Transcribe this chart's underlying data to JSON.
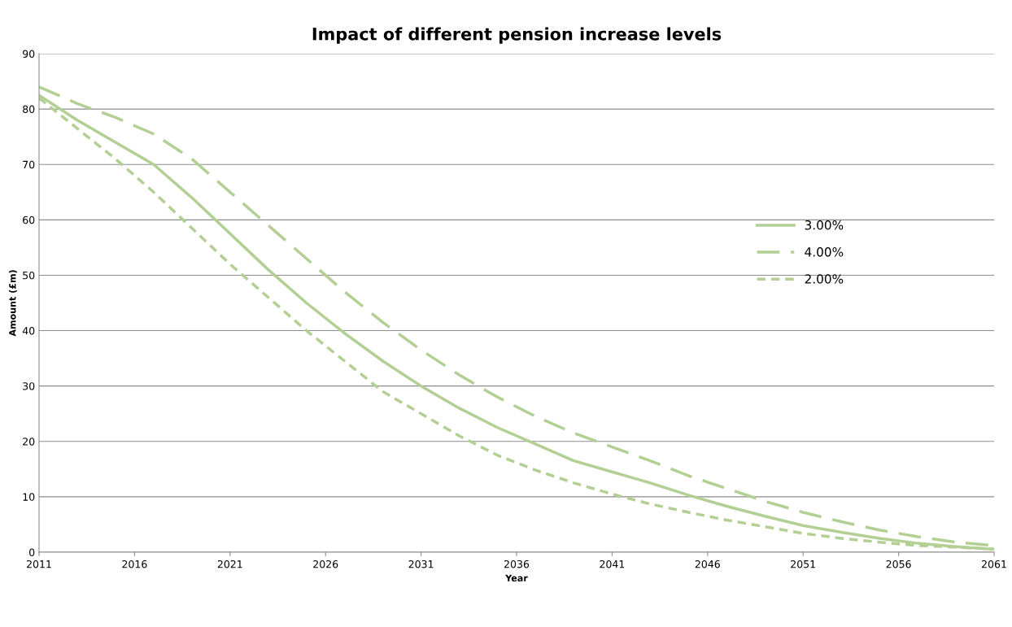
{
  "chart_data": {
    "type": "line",
    "title": "Impact of different pension increase levels",
    "xlabel": "Year",
    "ylabel": "Amount (£m)",
    "x": [
      2011,
      2013,
      2015,
      2017,
      2019,
      2021,
      2023,
      2025,
      2027,
      2029,
      2031,
      2033,
      2035,
      2037,
      2039,
      2041,
      2043,
      2045,
      2047,
      2049,
      2051,
      2053,
      2055,
      2057,
      2059,
      2061
    ],
    "series": [
      {
        "name": "3.00%",
        "color": "#b3cf94",
        "line_style": "solid",
        "values": [
          82.5,
          78,
          74,
          70,
          64,
          57.5,
          51,
          45,
          39.5,
          34.5,
          30,
          26,
          22.5,
          19.5,
          16.5,
          14.5,
          12.5,
          10.3,
          8.3,
          6.5,
          4.8,
          3.6,
          2.5,
          1.6,
          1.0,
          0.5
        ]
      },
      {
        "name": "4.00%",
        "color": "#b3cf94",
        "line_style": "dashed",
        "values": [
          84,
          81,
          78.5,
          75.5,
          71,
          65,
          59,
          53,
          47,
          41.5,
          36.5,
          32,
          28,
          24.5,
          21.5,
          19,
          16.5,
          13.8,
          11.5,
          9.2,
          7.2,
          5.5,
          4.0,
          2.8,
          1.8,
          1.2
        ]
      },
      {
        "name": "2.00%",
        "color": "#b3cf94",
        "line_style": "dotted",
        "values": [
          82,
          76.5,
          71,
          65,
          58.5,
          52,
          46,
          40,
          34.5,
          29,
          25,
          21,
          17.5,
          14.8,
          12.5,
          10.5,
          8.7,
          7.2,
          5.8,
          4.6,
          3.4,
          2.5,
          1.8,
          1.2,
          0.9,
          0.6
        ]
      }
    ],
    "xlim": [
      2011,
      2061
    ],
    "xticks": [
      2011,
      2016,
      2021,
      2026,
      2031,
      2036,
      2041,
      2046,
      2051,
      2056,
      2061
    ],
    "ylim": [
      0,
      90
    ],
    "yticks": [
      0,
      10,
      20,
      30,
      40,
      50,
      60,
      70,
      80,
      90
    ],
    "grid": "y",
    "legend": "right",
    "marker": "none"
  }
}
